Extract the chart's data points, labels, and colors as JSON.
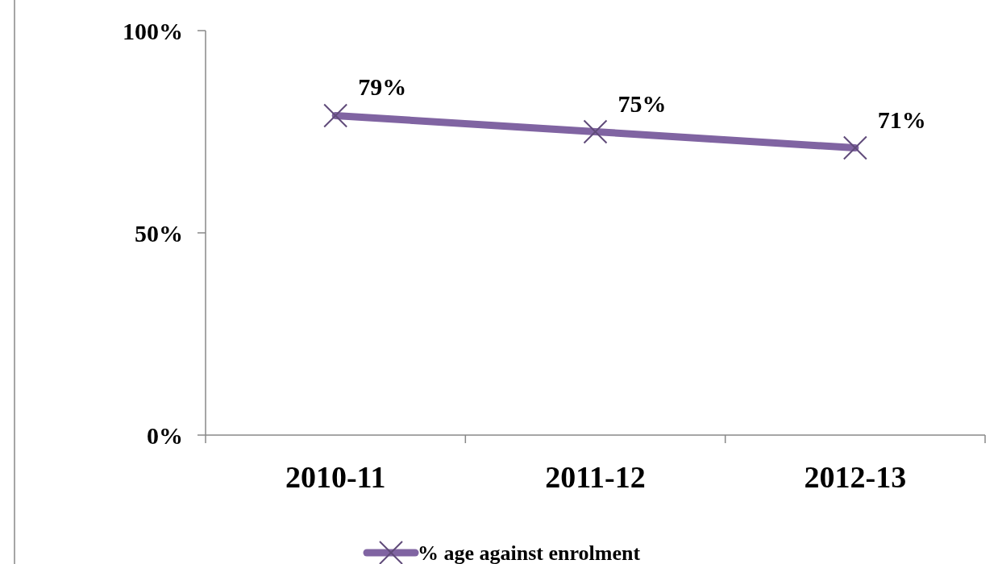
{
  "chart_data": {
    "type": "line",
    "categories": [
      "2010-11",
      "2011-12",
      "2012-13"
    ],
    "series": [
      {
        "name": "% age against enrolment",
        "color": "#8064a2",
        "values": [
          79,
          75,
          71
        ],
        "value_labels": [
          "79%",
          "75%",
          "71%"
        ]
      }
    ],
    "ylim": [
      0,
      100
    ],
    "yticks": [
      {
        "value": 0,
        "label": "0%"
      },
      {
        "value": 50,
        "label": "50%"
      },
      {
        "value": 100,
        "label": "100%"
      }
    ],
    "grid": false,
    "legend": "bottom",
    "marker": "cross",
    "line_style": "solid"
  }
}
